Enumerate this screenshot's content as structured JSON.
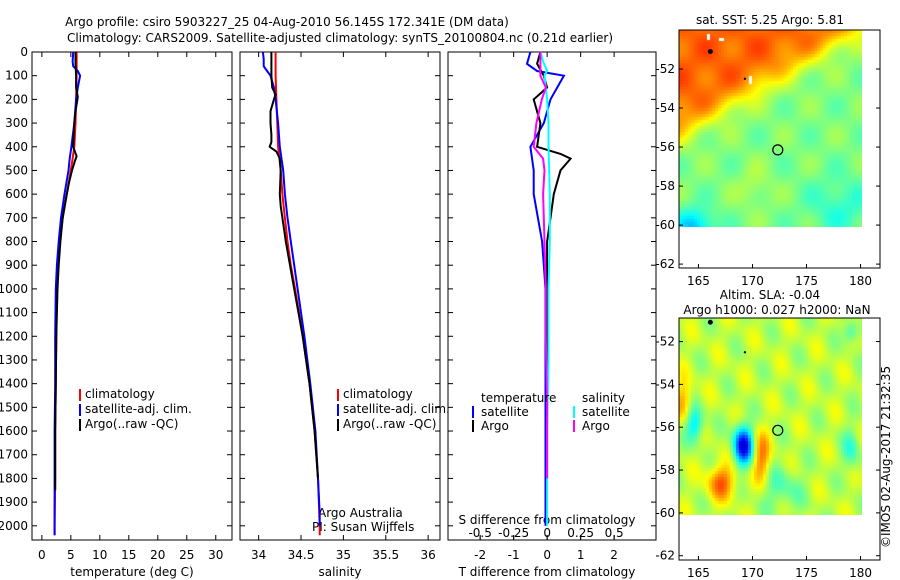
{
  "title_line1": "Argo profile: csiro 5903227_25 04-Aug-2010 56.145S 172.341E (DM data)",
  "title_line2": "Climatology: CARS2009. Satellite-adjusted climatology: synTS_20100804.nc (0.21d earlier)",
  "copyright": "©IMOS 02-Aug-2017 21:32:35",
  "colors": {
    "climatology": "#ff0000",
    "satellite": "#0000ff",
    "argo": "#000000",
    "sal_satellite": "#00ffff",
    "sal_argo": "#ff00ff"
  },
  "chart_data": [
    {
      "type": "line",
      "name": "temperature",
      "xlabel": "temperature (deg C)",
      "xlim": [
        -1.7,
        32.8
      ],
      "ylim": [
        0,
        2060
      ],
      "y_reversed": true,
      "xticks": [
        0,
        5,
        10,
        15,
        20,
        25,
        30
      ],
      "yticks": [
        0,
        100,
        200,
        300,
        400,
        500,
        600,
        700,
        800,
        900,
        1000,
        1100,
        1200,
        1300,
        1400,
        1500,
        1600,
        1700,
        1800,
        1900,
        2000
      ],
      "legend": [
        "climatology",
        "satellite-adj. clim.",
        "Argo(..raw -QC)"
      ],
      "legend_position": "lower-center",
      "series": [
        {
          "name": "climatology",
          "color": "#ff0000",
          "depth": [
            0,
            50,
            100,
            200,
            300,
            400,
            450,
            500,
            600,
            700,
            800,
            900,
            1000,
            1200,
            1400,
            1600,
            1800,
            2000,
            2040
          ],
          "values": [
            6.0,
            6.0,
            6.0,
            5.9,
            5.8,
            5.6,
            5.3,
            5.0,
            4.3,
            3.6,
            3.1,
            2.8,
            2.6,
            2.5,
            2.4,
            2.3,
            2.3,
            2.2,
            2.2
          ]
        },
        {
          "name": "satellite-adj. clim.",
          "color": "#0000ff",
          "depth": [
            0,
            40,
            60,
            80,
            100,
            150,
            200,
            300,
            400,
            450,
            500,
            600,
            700,
            800,
            900,
            1000,
            1200,
            1400,
            1600,
            1800,
            2000,
            2040
          ],
          "values": [
            5.4,
            5.3,
            5.4,
            6.2,
            6.6,
            6.2,
            5.9,
            5.6,
            5.1,
            4.8,
            4.6,
            3.9,
            3.3,
            2.9,
            2.6,
            2.4,
            2.3,
            2.3,
            2.2,
            2.2,
            2.2,
            2.2
          ]
        },
        {
          "name": "Argo",
          "color": "#000000",
          "depth": [
            0,
            50,
            100,
            150,
            190,
            250,
            300,
            400,
            440,
            460,
            500,
            550,
            600,
            700,
            800,
            900,
            1000,
            1200,
            1400,
            1600,
            1800,
            1850
          ],
          "values": [
            5.8,
            5.8,
            5.9,
            5.9,
            6.2,
            5.8,
            5.6,
            5.4,
            6.0,
            5.7,
            5.2,
            4.7,
            4.3,
            3.6,
            3.2,
            2.9,
            2.7,
            2.5,
            2.4,
            2.3,
            2.3,
            2.3
          ]
        }
      ]
    },
    {
      "type": "line",
      "name": "salinity",
      "xlabel": "salinity",
      "xlim": [
        33.78,
        36.14
      ],
      "ylim": [
        0,
        2060
      ],
      "y_reversed": true,
      "xticks": [
        34,
        34.5,
        35,
        35.5,
        36
      ],
      "legend": [
        "climatology",
        "satellite-adj. clim.",
        "Argo(..raw -QC)"
      ],
      "annotation": [
        "Argo Australia",
        "PI: Susan Wijffels"
      ],
      "series": [
        {
          "name": "climatology",
          "color": "#ff0000",
          "depth": [
            0,
            100,
            200,
            300,
            400,
            500,
            600,
            700,
            800,
            900,
            1000,
            1200,
            1400,
            1600,
            1800,
            2000,
            2040
          ],
          "values": [
            34.2,
            34.2,
            34.21,
            34.22,
            34.23,
            34.26,
            34.28,
            34.31,
            34.34,
            34.38,
            34.43,
            34.52,
            34.6,
            34.66,
            34.7,
            34.72,
            34.72
          ]
        },
        {
          "name": "satellite-adj. clim.",
          "color": "#0000ff",
          "depth": [
            0,
            30,
            60,
            80,
            100,
            150,
            200,
            300,
            400,
            500,
            600,
            700,
            800,
            900,
            1000,
            1200,
            1400,
            1600,
            1800,
            1950,
            2000
          ],
          "values": [
            34.05,
            34.06,
            34.06,
            34.1,
            34.14,
            34.18,
            34.2,
            34.23,
            34.25,
            34.29,
            34.31,
            34.34,
            34.38,
            34.42,
            34.46,
            34.54,
            34.61,
            34.67,
            34.7,
            34.72,
            34.72
          ]
        },
        {
          "name": "Argo",
          "color": "#000000",
          "depth": [
            0,
            100,
            150,
            180,
            200,
            250,
            300,
            350,
            380,
            400,
            420,
            450,
            500,
            600,
            650,
            700,
            800,
            900,
            1000,
            1200,
            1400,
            1600,
            1800
          ],
          "values": [
            34.15,
            34.15,
            34.16,
            34.2,
            34.18,
            34.14,
            34.14,
            34.15,
            34.15,
            34.13,
            34.21,
            34.25,
            34.26,
            34.25,
            34.26,
            34.28,
            34.32,
            34.37,
            34.42,
            34.52,
            34.6,
            34.66,
            34.7
          ]
        }
      ]
    },
    {
      "type": "line",
      "name": "difference",
      "xlabel": "T difference from climatology",
      "xlim": [
        -2.96,
        3.25
      ],
      "xticks": [
        -2,
        -1,
        0,
        1,
        2
      ],
      "s_label": "S difference from climatology",
      "s_ticks": [
        "-0.5",
        "-0.25",
        "0",
        "0.25",
        "0.5"
      ],
      "s_tick_values": [
        -0.5,
        -0.25,
        0,
        0.25,
        0.5
      ],
      "legend_temperature": {
        "heading": "temperature",
        "items": [
          "satellite",
          "Argo"
        ]
      },
      "legend_salinity": {
        "heading": "salinity",
        "items": [
          "satellite",
          "Argo"
        ]
      },
      "series": [
        {
          "name": "T satellite",
          "color": "#0000ff",
          "units": "T",
          "depth": [
            0,
            50,
            80,
            100,
            200,
            300,
            400,
            500,
            600,
            800,
            1000,
            1200,
            1500,
            1800,
            2000
          ],
          "values": [
            -0.5,
            -0.6,
            -0.3,
            0.5,
            0.1,
            -0.1,
            -0.5,
            -0.4,
            -0.4,
            -0.15,
            -0.05,
            -0.05,
            -0.05,
            -0.05,
            -0.05
          ]
        },
        {
          "name": "T Argo",
          "color": "#000000",
          "units": "T",
          "depth": [
            0,
            50,
            100,
            150,
            200,
            300,
            400,
            430,
            450,
            500,
            600,
            700,
            800,
            1000,
            1200,
            1500,
            1800
          ],
          "values": [
            -0.2,
            -0.3,
            -0.1,
            0.0,
            -0.4,
            -0.2,
            -0.3,
            0.4,
            0.7,
            0.4,
            0.2,
            0.1,
            0.0,
            0.0,
            0.0,
            0.0,
            0.0
          ]
        },
        {
          "name": "S satellite",
          "color": "#00ffff",
          "units": "S",
          "depth": [
            0,
            40,
            80,
            100,
            200,
            300,
            400,
            600,
            800,
            1000,
            1300,
            1600,
            1900,
            2000
          ],
          "values": [
            -0.05,
            -0.03,
            0.0,
            -0.02,
            0.0,
            0.01,
            0.01,
            0.02,
            0.02,
            0.01,
            0.01,
            0.0,
            0.0,
            0.0
          ]
        },
        {
          "name": "S Argo",
          "color": "#ff00ff",
          "units": "S",
          "depth": [
            0,
            100,
            150,
            200,
            300,
            400,
            450,
            500,
            600,
            800,
            1000,
            1200,
            1500,
            1800
          ],
          "values": [
            -0.05,
            -0.05,
            -0.01,
            -0.04,
            -0.08,
            -0.1,
            -0.03,
            -0.02,
            -0.03,
            -0.02,
            -0.01,
            -0.01,
            0.0,
            0.0
          ]
        }
      ]
    },
    {
      "type": "heatmap",
      "name": "sst-map",
      "title": "sat. SST: 5.25 Argo: 5.81",
      "xlim": [
        163.2,
        181.8
      ],
      "ylim": [
        -62.2,
        -50.0
      ],
      "xticks": [
        165,
        170,
        175,
        180
      ],
      "yticks": [
        -52,
        -54,
        -56,
        -58,
        -60,
        -62
      ],
      "profile_location": [
        172.341,
        -56.145
      ]
    },
    {
      "type": "heatmap",
      "name": "sla-map",
      "title_line1": "Altim. SLA: -0.04",
      "title_line2": "Argo h1000: 0.027 h2000: NaN",
      "xlim": [
        163.2,
        181.8
      ],
      "ylim": [
        -62.2,
        -50.9
      ],
      "xticks": [
        165,
        170,
        175,
        180
      ],
      "yticks": [
        -52,
        -54,
        -56,
        -58,
        -60,
        -62
      ],
      "profile_location": [
        172.341,
        -56.145
      ]
    }
  ]
}
